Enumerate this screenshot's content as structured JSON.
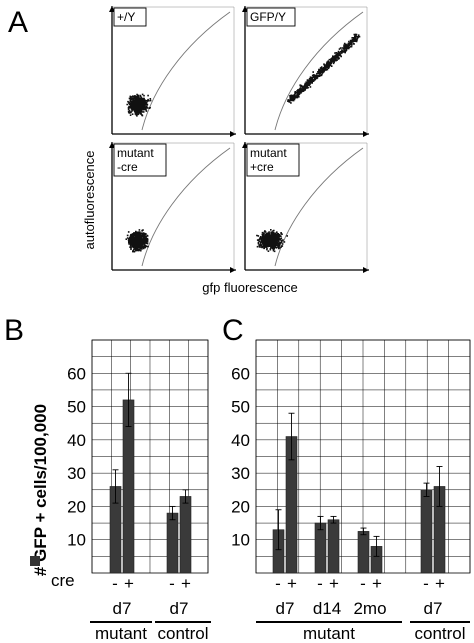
{
  "panels": {
    "a": "A",
    "b": "B",
    "c": "C"
  },
  "flow": {
    "y_label": "autofluorescence",
    "x_label": "gfp fluorescence",
    "plots": [
      {
        "label_lines": [
          "+/Y"
        ],
        "kind": "blob"
      },
      {
        "label_lines": [
          "GFP/Y"
        ],
        "kind": "diagonal"
      },
      {
        "label_lines": [
          "mutant",
          "-cre"
        ],
        "kind": "blob"
      },
      {
        "label_lines": [
          "mutant",
          "+cre"
        ],
        "kind": "blob-wide"
      }
    ]
  },
  "bar_ylabel": "# GFP + cells/100,000",
  "cre_label": "cre",
  "minus": "-",
  "plus": "+",
  "chart_data": [
    {
      "type": "bar",
      "panel": "B",
      "ylim": [
        0,
        70
      ],
      "yticks": [
        "10",
        "20",
        "30",
        "40",
        "50",
        "60"
      ],
      "groups": [
        {
          "label": "d7",
          "section": "mutant",
          "minus": 26,
          "minus_err": 5,
          "plus": 52,
          "plus_err": 8
        },
        {
          "label": "d7",
          "section": "control",
          "minus": 18,
          "minus_err": 2,
          "plus": 23,
          "plus_err": 2
        }
      ],
      "sections": [
        "mutant",
        "control"
      ]
    },
    {
      "type": "bar",
      "panel": "C",
      "ylim": [
        0,
        70
      ],
      "yticks": [
        "10",
        "20",
        "30",
        "40",
        "50",
        "60"
      ],
      "groups": [
        {
          "label": "d7",
          "section": "mutant",
          "minus": 13,
          "minus_err": 6,
          "plus": 41,
          "plus_err": 7
        },
        {
          "label": "d14",
          "section": "mutant",
          "minus": 15,
          "minus_err": 2,
          "plus": 16,
          "plus_err": 1
        },
        {
          "label": "2mo",
          "section": "mutant",
          "minus": 12.5,
          "minus_err": 1,
          "plus": 8,
          "plus_err": 3
        },
        {
          "label": "d7",
          "section": "control",
          "minus": 25,
          "minus_err": 2,
          "plus": 26,
          "plus_err": 6
        }
      ],
      "sections": [
        "mutant",
        "control"
      ]
    }
  ]
}
